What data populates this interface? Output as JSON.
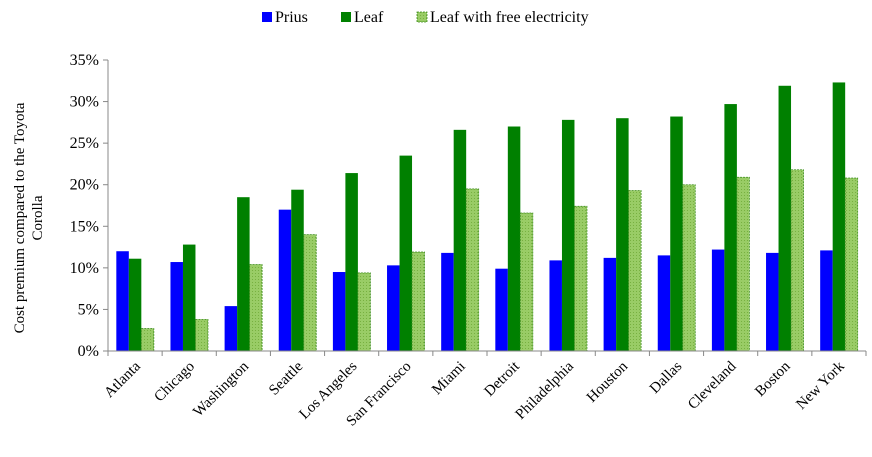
{
  "chart_data": {
    "type": "bar",
    "ylabel_lines": [
      "Cost premium compared to the Toyota",
      "Corolla"
    ],
    "categories": [
      "Atlanta",
      "Chicago",
      "Washington",
      "Seattle",
      "Los Angeles",
      "San Francisco",
      "Miami",
      "Detroit",
      "Philadelphia",
      "Houston",
      "Dallas",
      "Cleveland",
      "Boston",
      "New York"
    ],
    "series": [
      {
        "name": "Prius",
        "color": "#0000ff",
        "values": [
          12.0,
          10.7,
          5.4,
          17.0,
          9.5,
          10.3,
          11.8,
          9.9,
          10.9,
          11.2,
          11.5,
          12.2,
          11.8,
          12.1
        ]
      },
      {
        "name": "Leaf",
        "color": "#008000",
        "values": [
          11.1,
          12.8,
          18.5,
          19.4,
          21.4,
          23.5,
          26.6,
          27.0,
          27.8,
          28.0,
          28.2,
          29.7,
          31.9,
          32.3
        ]
      },
      {
        "name": "Leaf with free electricity",
        "color": "#99cc66",
        "values": [
          2.7,
          3.8,
          10.4,
          14.0,
          9.4,
          11.9,
          19.5,
          16.6,
          17.4,
          19.3,
          20.0,
          20.9,
          21.8,
          20.8
        ]
      }
    ],
    "ylim": [
      0,
      35
    ],
    "yticks": [
      0,
      5,
      10,
      15,
      20,
      25,
      30,
      35
    ],
    "ytick_labels": [
      "0%",
      "5%",
      "10%",
      "15%",
      "20%",
      "25%",
      "30%",
      "35%"
    ],
    "grid": false,
    "legend_position": "top-center"
  }
}
